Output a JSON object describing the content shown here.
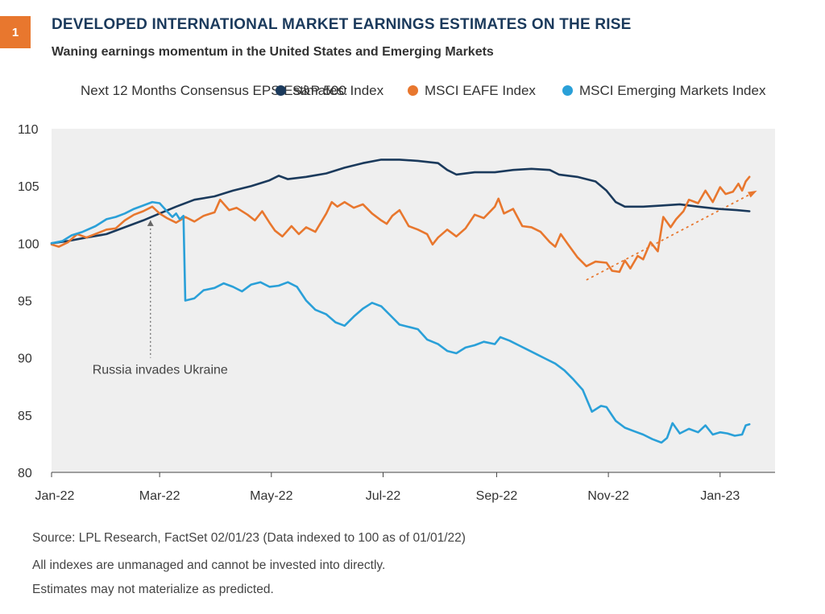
{
  "header": {
    "badge_number": "1",
    "title": "DEVELOPED INTERNATIONAL MARKET EARNINGS ESTIMATES ON THE RISE",
    "subtitle": "Waning earnings momentum in the United States and Emerging Markets"
  },
  "colors": {
    "badge": "#E8772E",
    "title": "#1B3A5C",
    "sp500": "#1B3A5C",
    "eafe": "#E8772E",
    "em": "#2AA0D8",
    "plot_bg": "#EFEFEF"
  },
  "legend": {
    "label": "Next 12 Months Consensus EPS Estimates:",
    "items": [
      "S&P 500 Index",
      "MSCI EAFE Index",
      "MSCI Emerging Markets Index"
    ]
  },
  "chart_data": {
    "type": "line",
    "x_tick_labels": [
      "Jan-22",
      "Mar-22",
      "May-22",
      "Jul-22",
      "Sep-22",
      "Nov-22",
      "Jan-23"
    ],
    "x_tick_dates": [
      "2022-01-01",
      "2022-03-01",
      "2022-05-01",
      "2022-07-01",
      "2022-09-01",
      "2022-11-01",
      "2023-01-01"
    ],
    "xlim": [
      "2022-01-01",
      "2023-01-31"
    ],
    "ylim": [
      80,
      110
    ],
    "y_ticks": [
      80,
      85,
      90,
      95,
      100,
      105,
      110
    ],
    "grid": false,
    "legend_position": "top",
    "series": [
      {
        "name": "S&P 500 Index",
        "color": "#1B3A5C",
        "points": [
          [
            "2022-01-01",
            100.0
          ],
          [
            "2022-01-10",
            100.2
          ],
          [
            "2022-01-20",
            100.5
          ],
          [
            "2022-01-31",
            100.8
          ],
          [
            "2022-02-10",
            101.4
          ],
          [
            "2022-02-20",
            102.0
          ],
          [
            "2022-03-01",
            102.6
          ],
          [
            "2022-03-10",
            103.2
          ],
          [
            "2022-03-20",
            103.8
          ],
          [
            "2022-03-31",
            104.1
          ],
          [
            "2022-04-10",
            104.6
          ],
          [
            "2022-04-20",
            105.0
          ],
          [
            "2022-04-30",
            105.5
          ],
          [
            "2022-05-05",
            105.9
          ],
          [
            "2022-05-10",
            105.6
          ],
          [
            "2022-05-20",
            105.8
          ],
          [
            "2022-05-31",
            106.1
          ],
          [
            "2022-06-10",
            106.6
          ],
          [
            "2022-06-20",
            107.0
          ],
          [
            "2022-06-30",
            107.3
          ],
          [
            "2022-07-10",
            107.3
          ],
          [
            "2022-07-20",
            107.2
          ],
          [
            "2022-07-31",
            107.0
          ],
          [
            "2022-08-05",
            106.4
          ],
          [
            "2022-08-10",
            106.0
          ],
          [
            "2022-08-20",
            106.2
          ],
          [
            "2022-08-31",
            106.2
          ],
          [
            "2022-09-10",
            106.4
          ],
          [
            "2022-09-20",
            106.5
          ],
          [
            "2022-09-30",
            106.4
          ],
          [
            "2022-10-05",
            106.0
          ],
          [
            "2022-10-15",
            105.8
          ],
          [
            "2022-10-25",
            105.4
          ],
          [
            "2022-10-31",
            104.6
          ],
          [
            "2022-11-05",
            103.6
          ],
          [
            "2022-11-10",
            103.2
          ],
          [
            "2022-11-20",
            103.2
          ],
          [
            "2022-11-30",
            103.3
          ],
          [
            "2022-12-10",
            103.4
          ],
          [
            "2022-12-20",
            103.2
          ],
          [
            "2022-12-31",
            103.0
          ],
          [
            "2023-01-10",
            102.9
          ],
          [
            "2023-01-17",
            102.8
          ]
        ]
      },
      {
        "name": "MSCI EAFE Index",
        "color": "#E8772E",
        "points": [
          [
            "2022-01-01",
            99.9
          ],
          [
            "2022-01-05",
            99.7
          ],
          [
            "2022-01-10",
            100.1
          ],
          [
            "2022-01-15",
            100.8
          ],
          [
            "2022-01-20",
            100.5
          ],
          [
            "2022-01-31",
            101.2
          ],
          [
            "2022-02-05",
            101.3
          ],
          [
            "2022-02-10",
            102.0
          ],
          [
            "2022-02-15",
            102.5
          ],
          [
            "2022-02-20",
            102.8
          ],
          [
            "2022-02-25",
            103.2
          ],
          [
            "2022-03-01",
            102.6
          ],
          [
            "2022-03-05",
            102.2
          ],
          [
            "2022-03-10",
            101.8
          ],
          [
            "2022-03-15",
            102.3
          ],
          [
            "2022-03-20",
            101.9
          ],
          [
            "2022-03-25",
            102.4
          ],
          [
            "2022-03-31",
            102.7
          ],
          [
            "2022-04-03",
            103.8
          ],
          [
            "2022-04-08",
            102.9
          ],
          [
            "2022-04-12",
            103.1
          ],
          [
            "2022-04-18",
            102.5
          ],
          [
            "2022-04-22",
            102.0
          ],
          [
            "2022-04-26",
            102.8
          ],
          [
            "2022-04-30",
            101.8
          ],
          [
            "2022-05-03",
            101.1
          ],
          [
            "2022-05-07",
            100.6
          ],
          [
            "2022-05-12",
            101.5
          ],
          [
            "2022-05-16",
            100.8
          ],
          [
            "2022-05-20",
            101.4
          ],
          [
            "2022-05-25",
            101.0
          ],
          [
            "2022-05-31",
            102.6
          ],
          [
            "2022-06-03",
            103.6
          ],
          [
            "2022-06-06",
            103.2
          ],
          [
            "2022-06-10",
            103.6
          ],
          [
            "2022-06-15",
            103.1
          ],
          [
            "2022-06-20",
            103.4
          ],
          [
            "2022-06-25",
            102.6
          ],
          [
            "2022-06-30",
            102.0
          ],
          [
            "2022-07-03",
            101.7
          ],
          [
            "2022-07-06",
            102.4
          ],
          [
            "2022-07-10",
            102.9
          ],
          [
            "2022-07-15",
            101.5
          ],
          [
            "2022-07-20",
            101.2
          ],
          [
            "2022-07-25",
            100.8
          ],
          [
            "2022-07-28",
            99.9
          ],
          [
            "2022-07-31",
            100.5
          ],
          [
            "2022-08-05",
            101.2
          ],
          [
            "2022-08-10",
            100.6
          ],
          [
            "2022-08-15",
            101.3
          ],
          [
            "2022-08-20",
            102.5
          ],
          [
            "2022-08-25",
            102.2
          ],
          [
            "2022-08-31",
            103.2
          ],
          [
            "2022-09-02",
            103.9
          ],
          [
            "2022-09-05",
            102.6
          ],
          [
            "2022-09-10",
            103.0
          ],
          [
            "2022-09-15",
            101.5
          ],
          [
            "2022-09-20",
            101.4
          ],
          [
            "2022-09-25",
            101.0
          ],
          [
            "2022-09-30",
            100.1
          ],
          [
            "2022-10-03",
            99.7
          ],
          [
            "2022-10-06",
            100.8
          ],
          [
            "2022-10-10",
            99.9
          ],
          [
            "2022-10-15",
            98.8
          ],
          [
            "2022-10-20",
            98.0
          ],
          [
            "2022-10-25",
            98.4
          ],
          [
            "2022-10-31",
            98.3
          ],
          [
            "2022-11-03",
            97.6
          ],
          [
            "2022-11-07",
            97.5
          ],
          [
            "2022-11-10",
            98.5
          ],
          [
            "2022-11-13",
            97.8
          ],
          [
            "2022-11-17",
            98.9
          ],
          [
            "2022-11-20",
            98.6
          ],
          [
            "2022-11-24",
            100.1
          ],
          [
            "2022-11-28",
            99.3
          ],
          [
            "2022-12-01",
            102.3
          ],
          [
            "2022-12-05",
            101.4
          ],
          [
            "2022-12-08",
            102.1
          ],
          [
            "2022-12-12",
            102.8
          ],
          [
            "2022-12-15",
            103.8
          ],
          [
            "2022-12-20",
            103.5
          ],
          [
            "2022-12-24",
            104.6
          ],
          [
            "2022-12-28",
            103.6
          ],
          [
            "2023-01-01",
            104.9
          ],
          [
            "2023-01-04",
            104.3
          ],
          [
            "2023-01-08",
            104.5
          ],
          [
            "2023-01-11",
            105.2
          ],
          [
            "2023-01-13",
            104.6
          ],
          [
            "2023-01-15",
            105.4
          ],
          [
            "2023-01-17",
            105.8
          ]
        ]
      },
      {
        "name": "MSCI Emerging Markets Index",
        "color": "#2AA0D8",
        "points": [
          [
            "2022-01-01",
            100.0
          ],
          [
            "2022-01-07",
            100.2
          ],
          [
            "2022-01-12",
            100.7
          ],
          [
            "2022-01-18",
            101.0
          ],
          [
            "2022-01-25",
            101.5
          ],
          [
            "2022-01-31",
            102.1
          ],
          [
            "2022-02-05",
            102.3
          ],
          [
            "2022-02-10",
            102.6
          ],
          [
            "2022-02-15",
            103.0
          ],
          [
            "2022-02-20",
            103.3
          ],
          [
            "2022-02-25",
            103.6
          ],
          [
            "2022-03-01",
            103.5
          ],
          [
            "2022-03-05",
            102.8
          ],
          [
            "2022-03-08",
            102.3
          ],
          [
            "2022-03-10",
            102.6
          ],
          [
            "2022-03-12",
            102.1
          ],
          [
            "2022-03-14",
            102.4
          ],
          [
            "2022-03-15",
            95.0
          ],
          [
            "2022-03-20",
            95.2
          ],
          [
            "2022-03-25",
            95.9
          ],
          [
            "2022-03-31",
            96.1
          ],
          [
            "2022-04-05",
            96.5
          ],
          [
            "2022-04-10",
            96.2
          ],
          [
            "2022-04-15",
            95.8
          ],
          [
            "2022-04-20",
            96.4
          ],
          [
            "2022-04-25",
            96.6
          ],
          [
            "2022-04-30",
            96.2
          ],
          [
            "2022-05-05",
            96.3
          ],
          [
            "2022-05-10",
            96.6
          ],
          [
            "2022-05-15",
            96.2
          ],
          [
            "2022-05-20",
            95.0
          ],
          [
            "2022-05-25",
            94.2
          ],
          [
            "2022-05-31",
            93.8
          ],
          [
            "2022-06-05",
            93.1
          ],
          [
            "2022-06-10",
            92.8
          ],
          [
            "2022-06-15",
            93.6
          ],
          [
            "2022-06-20",
            94.3
          ],
          [
            "2022-06-25",
            94.8
          ],
          [
            "2022-06-30",
            94.5
          ],
          [
            "2022-07-05",
            93.7
          ],
          [
            "2022-07-10",
            92.9
          ],
          [
            "2022-07-15",
            92.7
          ],
          [
            "2022-07-20",
            92.5
          ],
          [
            "2022-07-25",
            91.6
          ],
          [
            "2022-07-31",
            91.2
          ],
          [
            "2022-08-05",
            90.6
          ],
          [
            "2022-08-10",
            90.4
          ],
          [
            "2022-08-15",
            90.9
          ],
          [
            "2022-08-20",
            91.1
          ],
          [
            "2022-08-25",
            91.4
          ],
          [
            "2022-08-31",
            91.2
          ],
          [
            "2022-09-03",
            91.8
          ],
          [
            "2022-09-08",
            91.5
          ],
          [
            "2022-09-13",
            91.1
          ],
          [
            "2022-09-18",
            90.7
          ],
          [
            "2022-09-23",
            90.3
          ],
          [
            "2022-09-28",
            89.9
          ],
          [
            "2022-10-03",
            89.5
          ],
          [
            "2022-10-08",
            88.9
          ],
          [
            "2022-10-13",
            88.1
          ],
          [
            "2022-10-18",
            87.2
          ],
          [
            "2022-10-23",
            85.3
          ],
          [
            "2022-10-28",
            85.8
          ],
          [
            "2022-10-31",
            85.7
          ],
          [
            "2022-11-05",
            84.5
          ],
          [
            "2022-11-10",
            83.9
          ],
          [
            "2022-11-15",
            83.6
          ],
          [
            "2022-11-20",
            83.3
          ],
          [
            "2022-11-25",
            82.9
          ],
          [
            "2022-11-30",
            82.6
          ],
          [
            "2022-12-03",
            83.0
          ],
          [
            "2022-12-06",
            84.3
          ],
          [
            "2022-12-10",
            83.4
          ],
          [
            "2022-12-15",
            83.8
          ],
          [
            "2022-12-20",
            83.5
          ],
          [
            "2022-12-24",
            84.1
          ],
          [
            "2022-12-28",
            83.3
          ],
          [
            "2023-01-01",
            83.5
          ],
          [
            "2023-01-05",
            83.4
          ],
          [
            "2023-01-09",
            83.2
          ],
          [
            "2023-01-13",
            83.3
          ],
          [
            "2023-01-15",
            84.1
          ],
          [
            "2023-01-17",
            84.2
          ]
        ]
      }
    ],
    "annotations": [
      {
        "type": "vertical-dotted-line",
        "date": "2022-02-24",
        "y_from": 102.0,
        "y_to": 90.0,
        "text": "Russia invades Ukraine"
      },
      {
        "type": "trend-arrow",
        "color": "#E8772E",
        "from": [
          "2022-10-20",
          96.8
        ],
        "to": [
          "2023-01-20",
          104.5
        ]
      }
    ]
  },
  "footer": {
    "source": "Source: LPL Research, FactSet  02/01/23  (Data indexed to 100 as of 01/01/22)",
    "note1": "All indexes are unmanaged and cannot be invested into directly.",
    "note2": "Estimates may not materialize as predicted."
  }
}
